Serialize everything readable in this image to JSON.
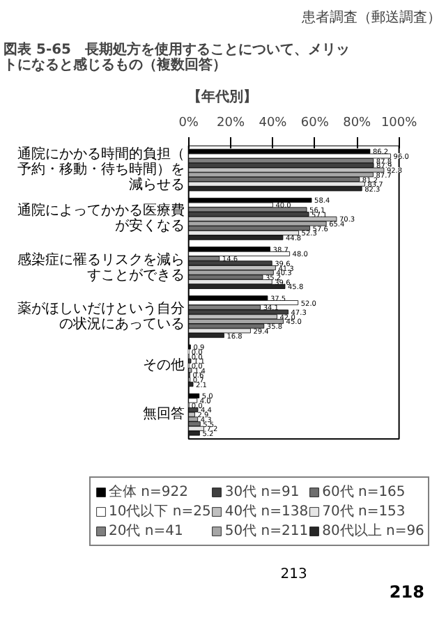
{
  "chart_data": {
    "type": "bar",
    "orientation": "horizontal",
    "title": "図表 5-65　長期処方を使用することについて、メリットになると感じるもの（複数回答）",
    "subtitle": "【年代別】",
    "categories": [
      "通院にかかる時間的負担（予約・移動・待ち時間）を減らせる",
      "通院によってかかる医療費が安くなる",
      "感染症に罹るリスクを減らすことができる",
      "薬がほしいだけという自分の状況にあっている",
      "その他",
      "無回答"
    ],
    "series": [
      {
        "name": "全体 n=922",
        "color": "#000000",
        "values": [
          86.2,
          58.4,
          38.7,
          37.5,
          0.9,
          5.0
        ],
        "value_labels": [
          "86.2",
          "58.4",
          "38.7",
          "37.5",
          "0.9",
          "5.0"
        ]
      },
      {
        "name": "10代以下 n=25",
        "color": "#ffffff",
        "values": [
          96.0,
          40.0,
          48.0,
          52.0,
          0.0,
          4.0
        ],
        "value_labels": [
          "96.0",
          "40.0",
          "48.0",
          "52.0",
          "0.0",
          "4.0"
        ]
      },
      {
        "name": "20代 n=41",
        "color": "#7f7f7f",
        "values": [
          87.8,
          56.1,
          14.6,
          34.1,
          0.0,
          0.0
        ],
        "value_labels": [
          "87.8",
          "56.1",
          "14.6",
          "34.1",
          "0.0",
          "0.0"
        ]
      },
      {
        "name": "30代 n=91",
        "color": "#404040",
        "values": [
          87.9,
          57.1,
          39.6,
          47.3,
          1.1,
          4.4
        ],
        "value_labels": [
          "87.9",
          "57.1",
          "39.6",
          "47.3",
          "1.1",
          "4.4"
        ]
      },
      {
        "name": "40代 n=138",
        "color": "#bfbfbf",
        "values": [
          92.8,
          70.3,
          41.3,
          42.0,
          0.0,
          2.9
        ],
        "value_labels": [
          "92.8",
          "70.3",
          "41.3",
          "42.0",
          "0.0",
          "2.9"
        ]
      },
      {
        "name": "50代 n=211",
        "color": "#a6a6a6",
        "values": [
          87.7,
          65.4,
          40.3,
          45.0,
          1.4,
          4.3
        ],
        "value_labels": [
          "87.7",
          "65.4",
          "40.3",
          "45.0",
          "1.4",
          "4.3"
        ]
      },
      {
        "name": "60代 n=165",
        "color": "#6e6e6e",
        "values": [
          81.2,
          57.6,
          35.2,
          35.8,
          0.6,
          5.5
        ],
        "value_labels": [
          "81.2",
          "57.6",
          "35.2",
          "35.8",
          "0.6",
          "5.5"
        ]
      },
      {
        "name": "70代 n=153",
        "color": "#e6e6e6",
        "values": [
          83.7,
          52.3,
          39.6,
          29.4,
          0.7,
          7.2
        ],
        "value_labels": [
          "83.7",
          "52.3",
          "39.6",
          "29.4",
          "0.7",
          "7.2"
        ]
      },
      {
        "name": "80代以上 n=96",
        "color": "#262626",
        "values": [
          82.3,
          44.8,
          45.8,
          16.8,
          2.1,
          5.2
        ],
        "value_labels": [
          "82.3",
          "44.8",
          "45.8",
          "16.8",
          "2.1",
          "5.2"
        ]
      }
    ],
    "xlim": [
      0,
      100
    ],
    "xticks": [
      {
        "value": 0,
        "label": "0%"
      },
      {
        "value": 20,
        "label": "20%"
      },
      {
        "value": 40,
        "label": "40%"
      },
      {
        "value": 60,
        "label": "60%"
      },
      {
        "value": 80,
        "label": "80%"
      },
      {
        "value": 100,
        "label": "100%"
      }
    ],
    "legend": "bottom",
    "annotations": [
      "患者調査（郵送調査）",
      "213",
      "218"
    ]
  }
}
